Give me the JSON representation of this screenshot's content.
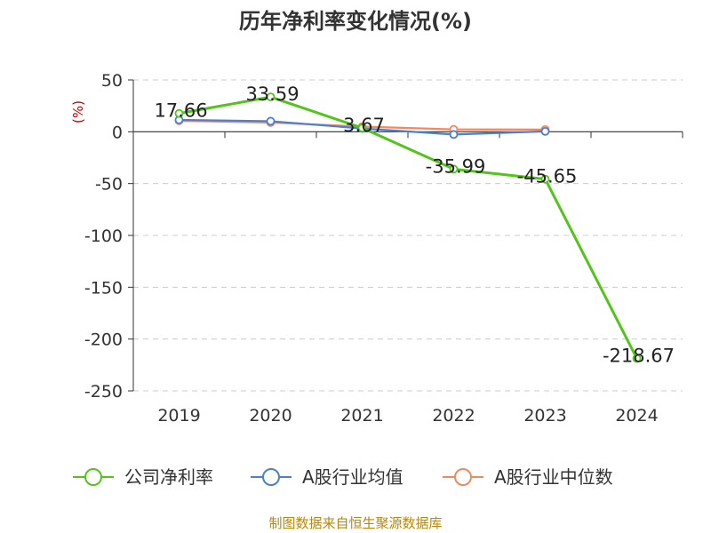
{
  "chart_data": {
    "type": "line",
    "title": "历年净利率变化情况(%)",
    "unit": "(%)",
    "categories": [
      "2019",
      "2020",
      "2021",
      "2022",
      "2023",
      "2024"
    ],
    "ylim": [
      -250,
      50
    ],
    "yticks": [
      50,
      0,
      -50,
      -100,
      -150,
      -200,
      -250
    ],
    "grid": true,
    "legend_position": "bottom",
    "series": [
      {
        "name": "公司净利率",
        "color": "#52c41a",
        "values": [
          17.66,
          33.59,
          3.67,
          -35.99,
          -45.65,
          -218.67
        ],
        "labels": [
          "17.66",
          "33.59",
          "3.67",
          "-35.99",
          "-45.65",
          "-218.67"
        ]
      },
      {
        "name": "A股行业均值",
        "color": "#4a7fd6",
        "values": [
          11.5,
          10.2,
          3.2,
          -2.6,
          0.4,
          null
        ]
      },
      {
        "name": "A股行业中位数",
        "color": "#f08a5d",
        "values": [
          10.6,
          8.9,
          5.0,
          2.3,
          2.1,
          null
        ]
      }
    ],
    "source": "制图数据来自恒生聚源数据库"
  }
}
